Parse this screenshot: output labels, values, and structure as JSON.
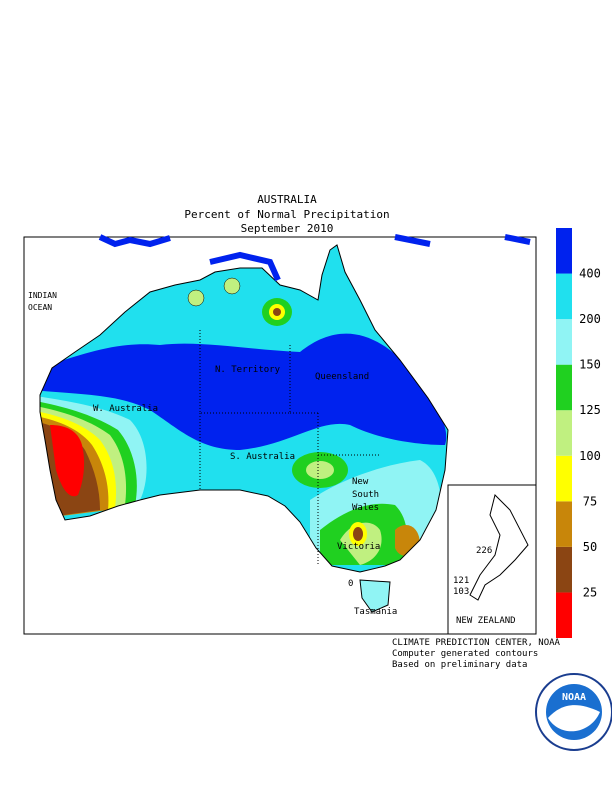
{
  "header": {
    "title": "AUSTRALIA",
    "subtitle": "Percent of Normal Precipitation",
    "period": "September 2010"
  },
  "map": {
    "ocean_1": "INDIAN",
    "ocean_2": "OCEAN",
    "regions": [
      "N. Territory",
      "Queensland",
      "W. Australia",
      "S. Australia",
      "New",
      "South",
      "Wales",
      "Victoria",
      "Tasmania",
      "NEW ZEALAND"
    ],
    "contour_labels": [
      "226",
      "121",
      "103",
      "0"
    ]
  },
  "legend": {
    "ticks": [
      25,
      50,
      75,
      100,
      125,
      150,
      200,
      400
    ],
    "colors": [
      "#ff0000",
      "#8b4513",
      "#c8860a",
      "#ffff00",
      "#c0f080",
      "#20d020",
      "#90f4f4",
      "#20e0ee",
      "#0022ee"
    ]
  },
  "credits": [
    "CLIMATE PREDICTION CENTER, NOAA",
    "Computer generated contours",
    "Based on preliminary data"
  ],
  "logo": "NOAA"
}
